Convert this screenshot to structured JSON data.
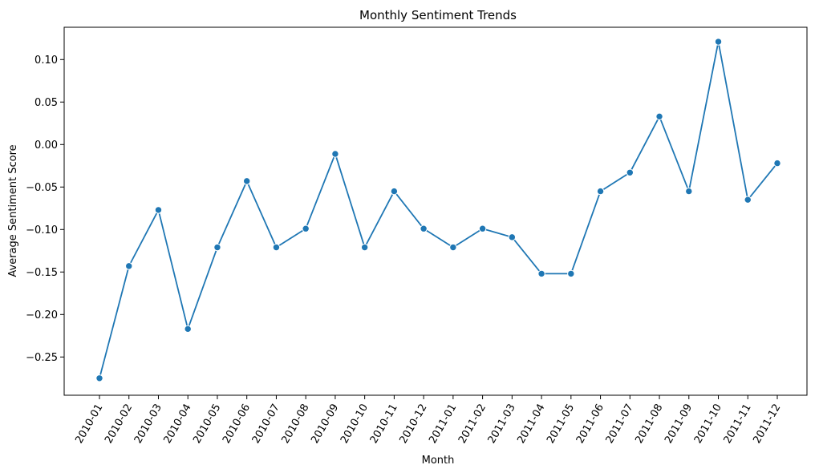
{
  "chart_data": {
    "type": "line",
    "title": "Monthly Sentiment Trends",
    "xlabel": "Month",
    "ylabel": "Average Sentiment Score",
    "categories": [
      "2010-01",
      "2010-02",
      "2010-03",
      "2010-04",
      "2010-05",
      "2010-06",
      "2010-07",
      "2010-08",
      "2010-09",
      "2010-10",
      "2010-11",
      "2010-12",
      "2011-01",
      "2011-02",
      "2011-03",
      "2011-04",
      "2011-05",
      "2011-06",
      "2011-07",
      "2011-08",
      "2011-09",
      "2011-10",
      "2011-11",
      "2011-12"
    ],
    "series": [
      {
        "values": [
          -0.275,
          -0.143,
          -0.077,
          -0.217,
          -0.121,
          -0.043,
          -0.121,
          -0.099,
          -0.011,
          -0.121,
          -0.055,
          -0.099,
          -0.121,
          -0.099,
          -0.109,
          -0.152,
          -0.152,
          -0.055,
          -0.033,
          0.033,
          -0.055,
          0.121,
          -0.065,
          -0.022
        ],
        "color": "#1f77b4",
        "marker": "circle"
      }
    ],
    "yticks": [
      -0.25,
      -0.2,
      -0.15,
      -0.1,
      -0.05,
      0.0,
      0.05,
      0.1
    ],
    "ytick_labels": [
      "−0.25",
      "−0.20",
      "−0.15",
      "−0.10",
      "−0.05",
      "0.00",
      "0.05",
      "0.10"
    ],
    "ylim": [
      -0.295,
      0.138
    ],
    "grid": false,
    "legend": "none"
  }
}
